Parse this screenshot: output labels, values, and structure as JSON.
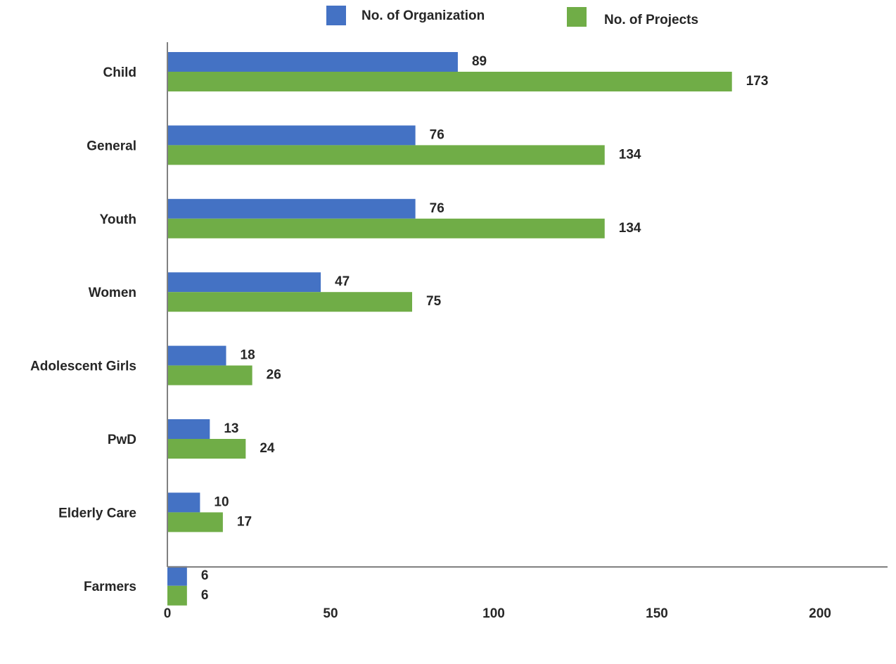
{
  "chart_data": {
    "type": "bar",
    "orientation": "horizontal",
    "title": "",
    "xlabel": "",
    "ylabel": "",
    "categories": [
      "Child",
      "General",
      "Youth",
      "Women",
      "Adolescent Girls",
      "PwD",
      "Elderly Care",
      "Farmers"
    ],
    "series": [
      {
        "name": "No. of Organization",
        "color": "#4472C4",
        "values": [
          89,
          76,
          76,
          47,
          18,
          13,
          10,
          6
        ]
      },
      {
        "name": "No. of Projects",
        "color": "#70AD47",
        "values": [
          173,
          134,
          134,
          75,
          26,
          24,
          17,
          6
        ]
      }
    ],
    "xlim": [
      0,
      200
    ],
    "x_ticks": [
      "0",
      "50",
      "100",
      "150",
      "200"
    ],
    "grid": false,
    "legend_position": "top",
    "axis_color": "#808080"
  }
}
